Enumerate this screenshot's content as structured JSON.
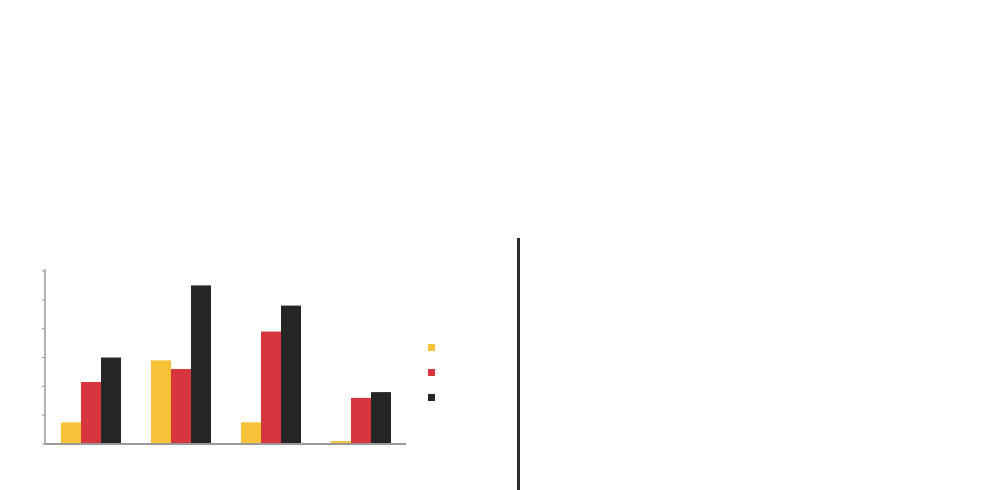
{
  "chart_data": {
    "type": "bar",
    "title": "",
    "xlabel": "",
    "ylabel": "",
    "ylim": [
      0,
      6
    ],
    "y_ticks": [
      0,
      1,
      2,
      3,
      4,
      5,
      6
    ],
    "y_tick_labels": [
      "",
      "",
      "",
      "",
      "",
      "",
      ""
    ],
    "grid": false,
    "legend_position": "right",
    "categories": [
      "",
      "",
      "",
      ""
    ],
    "series": [
      {
        "name": "",
        "color": "#f7c238",
        "values": [
          0.75,
          2.9,
          0.75,
          0.1
        ],
        "data_labels": [
          "",
          "",
          "",
          ""
        ]
      },
      {
        "name": "",
        "color": "#d6363d",
        "values": [
          2.15,
          2.6,
          3.9,
          1.6
        ],
        "data_labels": [
          "",
          "",
          "",
          ""
        ]
      },
      {
        "name": "",
        "color": "#262626",
        "values": [
          3.0,
          5.5,
          4.8,
          1.8
        ],
        "data_labels": [
          "",
          "",
          "",
          ""
        ]
      }
    ]
  }
}
